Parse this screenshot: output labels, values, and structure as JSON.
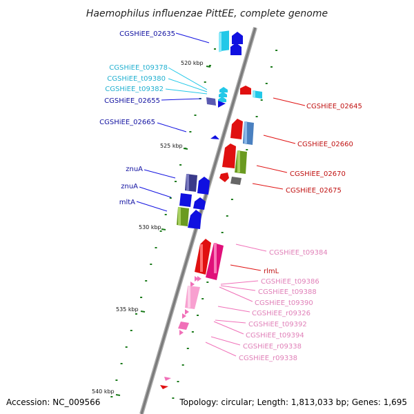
{
  "title": "Haemophilus influenzae PittEE, complete genome",
  "footer": {
    "accession": "Accession: NC_009566",
    "topology": "Topology: circular; Length: 1,813,033 bp; Genes: 1,695"
  },
  "ticks": [
    "520 kbp",
    "525 kbp",
    "530 kbp",
    "535 kbp",
    "540 kbp"
  ],
  "left_labels": [
    "CGSHiEE_02635",
    "CGSHiEE_t09378",
    "CGSHiEE_t09380",
    "CGSHiEE_t09382",
    "CGSHiEE_02655",
    "CGSHiEE_02665",
    "znuA",
    "znuA",
    "mltA"
  ],
  "right_labels": [
    "CGSHiEE_02645",
    "CGSHiEE_02660",
    "CGSHiEE_02670",
    "CGSHiEE_02675",
    "CGSHiEE_t09384",
    "rlmL",
    "CGSHiEE_t09386",
    "CGSHiEE_t09388",
    "CGSHiEE_t09390",
    "CGSHiEE_r09326",
    "CGSHiEE_t09392",
    "CGSHiEE_t09394",
    "CGSHiEE_r09338",
    "CGSHiEE_r09338"
  ],
  "colors": {
    "blue": "#1010e0",
    "cyan": "#22c8e8",
    "red": "#e01010",
    "pink": "#f070b8",
    "olive": "#6a9a20",
    "navy": "#3a3a8a",
    "steel": "#4a80c0",
    "gray": "#666666",
    "tick": "#1a7a1a",
    "backbone": "#808080"
  }
}
